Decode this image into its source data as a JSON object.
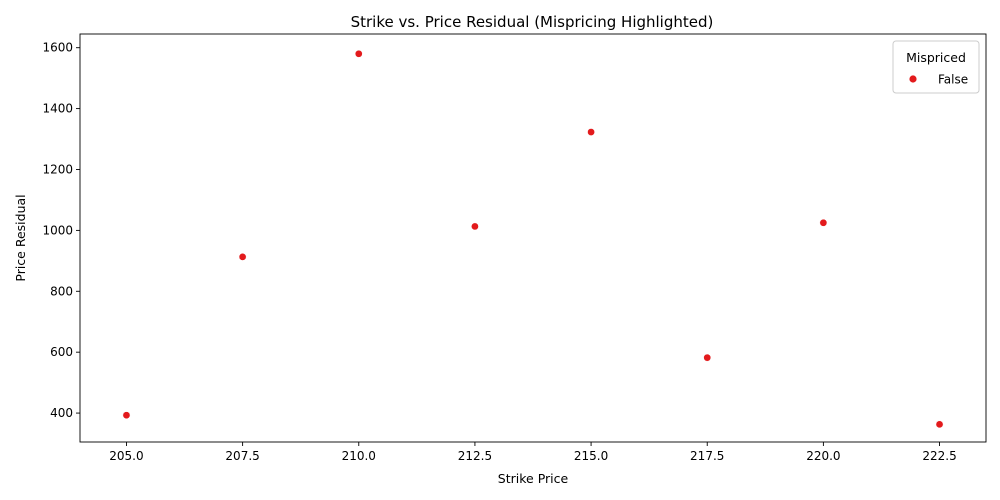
{
  "chart_data": {
    "type": "scatter",
    "title": "Strike vs. Price Residual (Mispricing Highlighted)",
    "xlabel": "Strike Price",
    "ylabel": "Price Residual",
    "xlim": [
      204.0,
      223.5
    ],
    "ylim": [
      305,
      1645
    ],
    "xticks": [
      205.0,
      207.5,
      210.0,
      212.5,
      215.0,
      217.5,
      220.0,
      222.5
    ],
    "xtick_labels": [
      "205.0",
      "207.5",
      "210.0",
      "212.5",
      "215.0",
      "217.5",
      "220.0",
      "222.5"
    ],
    "yticks": [
      400,
      600,
      800,
      1000,
      1200,
      1400,
      1600
    ],
    "ytick_labels": [
      "400",
      "600",
      "800",
      "1000",
      "1200",
      "1400",
      "1600"
    ],
    "grid": false,
    "legend": {
      "title": "Mispriced",
      "placement": "top-right",
      "entries": [
        {
          "label": "False",
          "color": "#e31a1c"
        }
      ]
    },
    "series": [
      {
        "name": "False",
        "color": "#e31a1c",
        "points": [
          {
            "x": 205.0,
            "y": 393
          },
          {
            "x": 207.5,
            "y": 913
          },
          {
            "x": 210.0,
            "y": 1580
          },
          {
            "x": 212.5,
            "y": 1013
          },
          {
            "x": 215.0,
            "y": 1323
          },
          {
            "x": 217.5,
            "y": 582
          },
          {
            "x": 220.0,
            "y": 1025
          },
          {
            "x": 222.5,
            "y": 363
          }
        ]
      }
    ]
  }
}
